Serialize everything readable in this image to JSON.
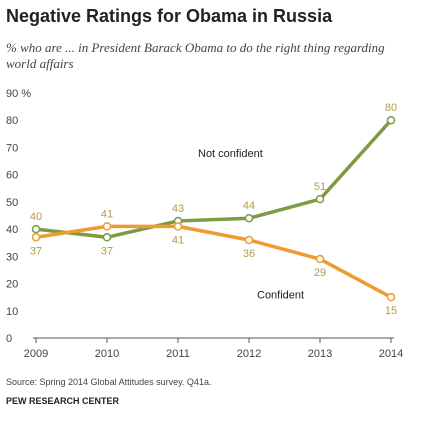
{
  "header": {
    "title": "Negative Ratings for Obama in Russia",
    "subtitle": "% who are ... in President Barack Obama to do the right thing regarding world affairs"
  },
  "chart_data": {
    "type": "line",
    "title": "Negative Ratings for Obama in Russia",
    "subtitle": "% who are ... in President Barack Obama to do the right thing regarding world affairs",
    "x": [
      2009,
      2010,
      2011,
      2012,
      2013,
      2014
    ],
    "x_tick_labels": [
      "2009",
      "2010",
      "2011",
      "2012",
      "2013",
      "2014"
    ],
    "ylim": [
      0,
      90
    ],
    "y_ticks": [
      0,
      10,
      20,
      30,
      40,
      50,
      60,
      70,
      80,
      90
    ],
    "y_tick_labels": [
      "0",
      "10",
      "20",
      "30",
      "40",
      "50",
      "60",
      "70",
      "80",
      "90 %"
    ],
    "grid": false,
    "series": [
      {
        "name": "Not confident",
        "values": [
          40,
          37,
          43,
          44,
          51,
          80
        ],
        "value_labels": [
          "40",
          "37",
          "43",
          "44",
          "51",
          "80"
        ],
        "color": "#7e9a44"
      },
      {
        "name": "Confident",
        "values": [
          37,
          41,
          41,
          36,
          29,
          15
        ],
        "value_labels": [
          "37",
          "41",
          "41",
          "36",
          "29",
          "15"
        ],
        "color": "#ef9b30"
      }
    ],
    "label_color": "#b39b4a"
  },
  "footer": {
    "source": "Source: Spring 2014 Global Attitudes survey. Q41a.",
    "credit": "PEW RESEARCH CENTER"
  }
}
